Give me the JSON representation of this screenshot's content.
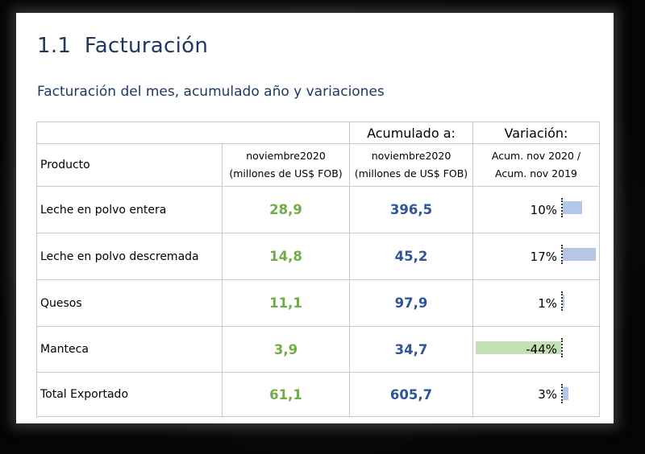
{
  "section": {
    "number": "1.1",
    "title": "Facturación"
  },
  "subtitle": "Facturación del mes, acumulado año y variaciones",
  "table": {
    "header": {
      "acumulado": "Acumulado a:",
      "variacion": "Variación:",
      "producto": "Producto",
      "mes_line1": "noviembre2020",
      "mes_line2": "(millones de US$ FOB)",
      "acum_line1": "noviembre2020",
      "acum_line2": "(millones de US$ FOB)",
      "var_line1": "Acum. nov 2020 /",
      "var_line2": "Acum. nov 2019"
    },
    "rows": [
      {
        "producto": "Leche en polvo entera",
        "mes": "28,9",
        "acumulado": "396,5",
        "variacion": "10%",
        "variacion_value": 10
      },
      {
        "producto": "Leche en polvo descremada",
        "mes": "14,8",
        "acumulado": "45,2",
        "variacion": "17%",
        "variacion_value": 17
      },
      {
        "producto": "Quesos",
        "mes": "11,1",
        "acumulado": "97,9",
        "variacion": "1%",
        "variacion_value": 1
      },
      {
        "producto": "Manteca",
        "mes": "3,9",
        "acumulado": "34,7",
        "variacion": "-44%",
        "variacion_value": -44
      },
      {
        "producto": "Total Exportado",
        "mes": "61,1",
        "acumulado": "605,7",
        "variacion": "3%",
        "variacion_value": 3
      }
    ]
  },
  "colors": {
    "heading": "#1f3864",
    "mes_value": "#70ad47",
    "acum_value": "#2f5597",
    "bar_positive": "#b4c7e7",
    "bar_negative": "#c5e0b4"
  }
}
